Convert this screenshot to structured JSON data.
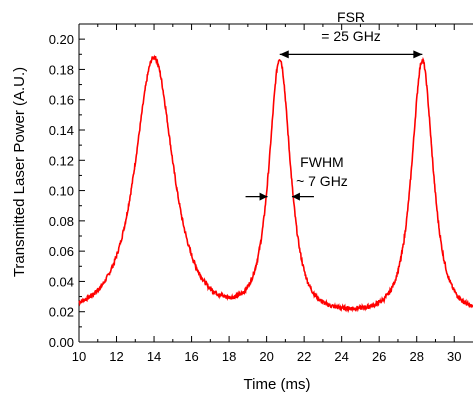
{
  "chart_data": {
    "type": "line",
    "title": "",
    "xlabel": "Time (ms)",
    "ylabel": "Transmitted Laser Power (A.U.)",
    "xlim": [
      10,
      31
    ],
    "ylim": [
      0,
      0.21
    ],
    "xticks": [
      10,
      12,
      14,
      16,
      18,
      20,
      22,
      24,
      26,
      28,
      30
    ],
    "xtick_labels": [
      "10",
      "12",
      "14",
      "16",
      "18",
      "20",
      "22",
      "24",
      "26",
      "28",
      "30"
    ],
    "yticks": [
      0,
      0.02,
      0.04,
      0.06,
      0.08,
      0.1,
      0.12,
      0.14,
      0.16,
      0.18,
      0.2
    ],
    "ytick_labels": [
      "0.00",
      "0.02",
      "0.04",
      "0.06",
      "0.08",
      "0.10",
      "0.12",
      "0.14",
      "0.16",
      "0.18",
      "0.20"
    ],
    "grid": false,
    "legend": "none",
    "series_color": "#ff0000",
    "baseline": 0.02,
    "peaks": [
      {
        "center": 14.0,
        "height": 0.188,
        "fwhm": 2.5
      },
      {
        "center": 20.7,
        "height": 0.186,
        "fwhm": 1.4
      },
      {
        "center": 28.3,
        "height": 0.186,
        "fwhm": 1.4
      }
    ],
    "annotations": {
      "fsr": {
        "line1": "FSR",
        "line2": "= 25 GHz",
        "x_from": 20.7,
        "x_to": 28.3,
        "y": 0.186
      },
      "fwhm": {
        "line1": "FWHM",
        "line2": "~ 7 GHz",
        "x_left": 20.05,
        "x_right": 21.35,
        "y": 0.096
      }
    }
  }
}
